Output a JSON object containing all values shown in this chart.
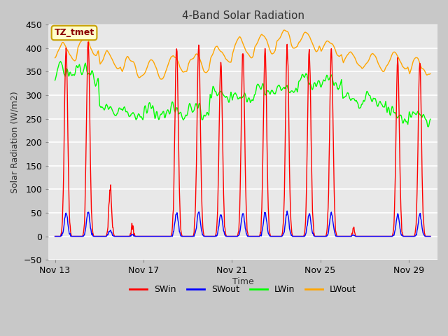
{
  "title": "4-Band Solar Radiation",
  "xlabel": "Time",
  "ylabel": "Solar Radiation (W/m2)",
  "ylim": [
    -50,
    450
  ],
  "yticks": [
    -50,
    0,
    50,
    100,
    150,
    200,
    250,
    300,
    350,
    400,
    450
  ],
  "fig_bg_color": "#c8c8c8",
  "plot_bg_color": "#e8e8e8",
  "grid_color": "white",
  "annotation_text": "TZ_tmet",
  "annotation_color": "#8b0000",
  "annotation_bg": "#ffffcc",
  "annotation_border": "#c8a000",
  "legend_entries": [
    "SWin",
    "SWout",
    "LWin",
    "LWout"
  ],
  "legend_colors": [
    "red",
    "blue",
    "lime",
    "orange"
  ],
  "line_width": 1.0,
  "x_tick_positions": [
    0,
    4,
    8,
    12,
    16
  ],
  "x_tick_labels": [
    "Nov 13",
    "Nov 17",
    "Nov 21",
    "Nov 25",
    "Nov 29"
  ],
  "xlim": [
    -0.3,
    17.3
  ],
  "n_days": 17
}
